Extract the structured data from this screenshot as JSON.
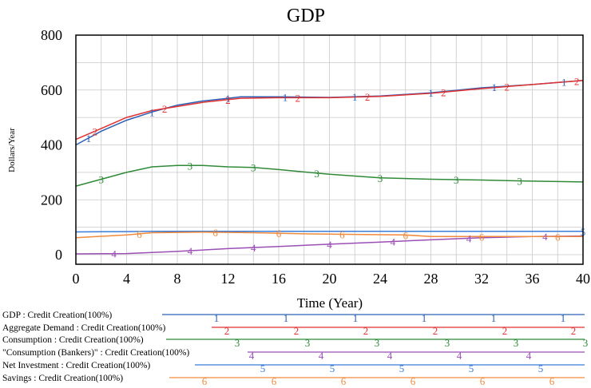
{
  "chart_data": {
    "type": "line",
    "title": "GDP",
    "xlabel": "Time (Year)",
    "ylabel": "Dollars/Year",
    "xlim": [
      0,
      40
    ],
    "ylim": [
      0,
      800
    ],
    "x_ticks": [
      "0",
      "4",
      "8",
      "12",
      "16",
      "20",
      "24",
      "28",
      "32",
      "36",
      "40"
    ],
    "y_ticks": [
      "0",
      "200",
      "400",
      "600",
      "800"
    ],
    "grid": true,
    "legend_position": "bottom",
    "series": [
      {
        "name": "GDP : Credit Creation(100%)",
        "marker": "1",
        "color": "#2e5fb5",
        "x": [
          0,
          2,
          4,
          6,
          8,
          10,
          12,
          13,
          16,
          20,
          24,
          28,
          32,
          36,
          40
        ],
        "y": [
          400,
          450,
          490,
          520,
          545,
          560,
          570,
          575,
          575,
          573,
          578,
          590,
          608,
          620,
          635
        ]
      },
      {
        "name": "Aggregate Demand : Credit Creation(100%)",
        "marker": "2",
        "color": "#e03232",
        "x": [
          0,
          2,
          4,
          6,
          8,
          10,
          12,
          13,
          16,
          20,
          24,
          28,
          32,
          36,
          40
        ],
        "y": [
          420,
          460,
          500,
          525,
          540,
          555,
          565,
          570,
          572,
          572,
          577,
          588,
          605,
          620,
          635
        ]
      },
      {
        "name": "Consumption : Credit Creation(100%)",
        "marker": "3",
        "color": "#2f8a38",
        "x": [
          0,
          2,
          4,
          6,
          8,
          10,
          12,
          14,
          16,
          20,
          24,
          28,
          32,
          36,
          40
        ],
        "y": [
          250,
          275,
          300,
          320,
          325,
          325,
          320,
          318,
          310,
          293,
          280,
          275,
          272,
          268,
          265
        ]
      },
      {
        "name": "\"Consumption (Bankers)\" : Credit Creation(100%)",
        "marker": "4",
        "color": "#9b4fb6",
        "x": [
          0,
          4,
          8,
          12,
          16,
          20,
          24,
          28,
          32,
          36,
          40
        ],
        "y": [
          3,
          4,
          12,
          22,
          30,
          38,
          46,
          54,
          62,
          66,
          68
        ]
      },
      {
        "name": "Net Investment : Credit Creation(100%)",
        "marker": "5",
        "color": "#3a7dd8",
        "x": [
          0,
          4,
          6,
          10,
          16,
          20,
          24,
          28,
          32,
          36,
          40
        ],
        "y": [
          83,
          84,
          85,
          85,
          85,
          85,
          85,
          85,
          85,
          85,
          85
        ]
      },
      {
        "name": "Savings : Credit Creation(100%)",
        "marker": "6",
        "color": "#f08a3c",
        "x": [
          0,
          4,
          6,
          10,
          14,
          18,
          22,
          26,
          28,
          32,
          36,
          40
        ],
        "y": [
          62,
          72,
          80,
          82,
          80,
          76,
          74,
          72,
          66,
          66,
          66,
          66
        ]
      }
    ]
  }
}
